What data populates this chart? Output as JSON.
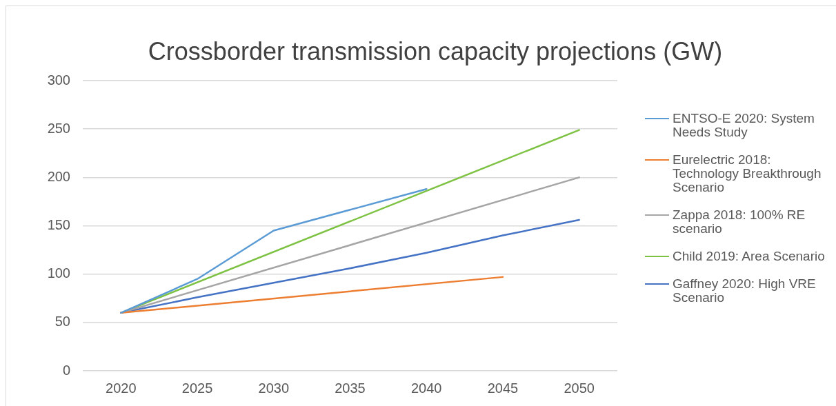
{
  "chart_data": {
    "type": "line",
    "title": "Crossborder transmission capacity projections (GW)",
    "categories": [
      "2020",
      "2025",
      "2030",
      "2035",
      "2040",
      "2045",
      "2050"
    ],
    "series": [
      {
        "name": "ENTSO-E 2020: System Needs Study",
        "color": "#5b9bd5",
        "values": [
          60,
          95,
          145,
          null,
          188,
          null,
          null
        ]
      },
      {
        "name": "Eurelectric 2018: Technology Breakthrough Scenario",
        "color": "#ed7d31",
        "values": [
          60,
          null,
          null,
          null,
          null,
          97,
          null
        ]
      },
      {
        "name": "Zappa 2018: 100% RE scenario",
        "color": "#a5a5a5",
        "values": [
          60,
          null,
          null,
          null,
          null,
          null,
          200
        ]
      },
      {
        "name": "Child 2019: Area Scenario",
        "color": "#7dc242",
        "values": [
          60,
          null,
          null,
          null,
          null,
          null,
          249
        ]
      },
      {
        "name": "Gaffney 2020: High VRE Scenario",
        "color": "#4472c4",
        "values": [
          60,
          76,
          91,
          106,
          122,
          140,
          156
        ]
      }
    ],
    "ylim": [
      0,
      300
    ],
    "yticks": [
      0,
      50,
      100,
      150,
      200,
      250,
      300
    ],
    "grid": "y",
    "legend": "right",
    "marker": "none"
  }
}
